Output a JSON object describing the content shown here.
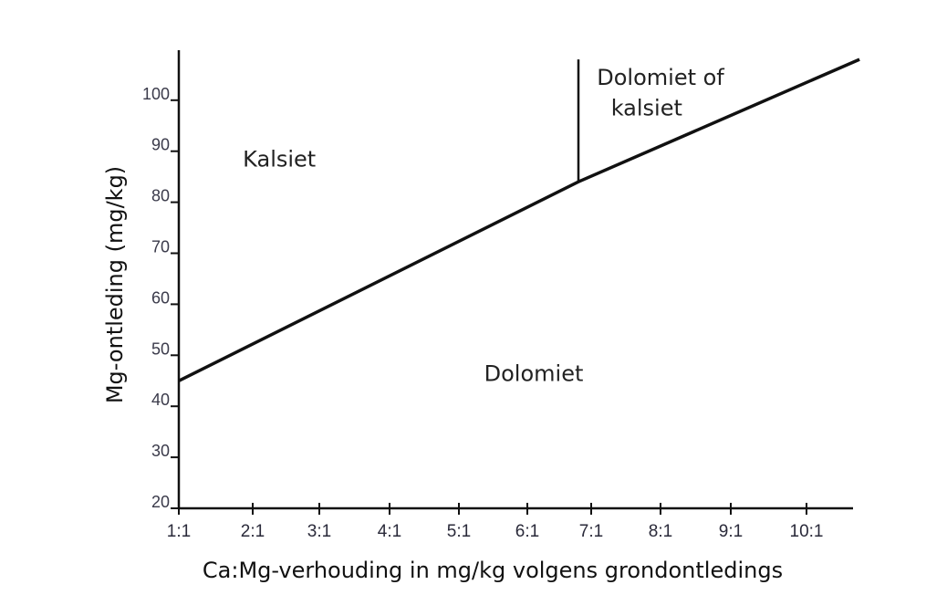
{
  "chart_data": {
    "type": "line",
    "title": "",
    "xlabel": "Ca:Mg-verhouding in mg/kg  volgens grondontledings",
    "ylabel": "Mg-ontleding (mg/kg)",
    "x_tick_labels": [
      "1:1",
      "2:1",
      "3:1",
      "4:1",
      "5:1",
      "6:1",
      "7:1",
      "8:1",
      "9:1",
      "10:1"
    ],
    "x_tick_values": [
      1,
      2,
      3,
      4,
      5,
      6,
      7,
      8,
      9,
      10
    ],
    "y_ticks": [
      20,
      30,
      40,
      50,
      60,
      70,
      80,
      90,
      100
    ],
    "xlim": [
      1,
      10.7
    ],
    "ylim": [
      20,
      108
    ],
    "grid": false,
    "series": [
      {
        "x": [
          1,
          6.8,
          10.7
        ],
        "y": [
          45,
          84,
          108
        ]
      }
    ],
    "divider": {
      "x": 6.8,
      "y_from": 84,
      "y_to": 108
    },
    "regions": [
      {
        "text": "Kalsiet",
        "x": 2.4,
        "y": 87
      },
      {
        "text": "Dolomiet",
        "x": 6.1,
        "y": 45
      },
      {
        "text": "Dolomiet of",
        "x": 8.0,
        "y": 103
      },
      {
        "text": "kalsiet",
        "x": 7.8,
        "y": 97
      }
    ]
  }
}
